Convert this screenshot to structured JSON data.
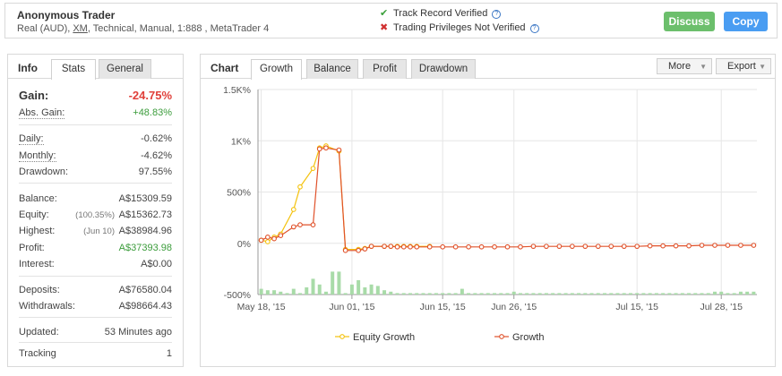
{
  "header": {
    "name": "Anonymous Trader",
    "details_pre": "Real (AUD), ",
    "broker": "XM",
    "details_post": ", Technical, Manual, 1:888 , MetaTrader 4",
    "track_record": "Track Record Verified",
    "trading_privileges": "Trading Privileges Not Verified",
    "discuss_label": "Discuss",
    "copy_label": "Copy"
  },
  "info": {
    "title": "Info",
    "tabs": [
      "Stats",
      "General"
    ],
    "gain_label": "Gain:",
    "gain_value": "-24.75%",
    "abs_gain_label": "Abs. Gain:",
    "abs_gain_value": "+48.83%",
    "daily_label": "Daily:",
    "daily_value": "-0.62%",
    "monthly_label": "Monthly:",
    "monthly_value": "-4.62%",
    "drawdown_label": "Drawdown:",
    "drawdown_value": "97.55%",
    "balance_label": "Balance:",
    "balance_value": "A$15309.59",
    "equity_label": "Equity:",
    "equity_sub": "(100.35%)",
    "equity_value": "A$15362.73",
    "highest_label": "Highest:",
    "highest_sub": "(Jun 10)",
    "highest_value": "A$38984.96",
    "profit_label": "Profit:",
    "profit_value": "A$37393.98",
    "interest_label": "Interest:",
    "interest_value": "A$0.00",
    "deposits_label": "Deposits:",
    "deposits_value": "A$76580.04",
    "withdrawals_label": "Withdrawals:",
    "withdrawals_value": "A$98664.43",
    "updated_label": "Updated:",
    "updated_value": "53 Minutes ago",
    "tracking_label": "Tracking",
    "tracking_value": "1"
  },
  "chart_panel": {
    "title": "Chart",
    "tabs": [
      "Growth",
      "Balance",
      "Profit",
      "Drawdown"
    ],
    "more_label": "More",
    "export_label": "Export"
  },
  "colors": {
    "equity": "#f4c20d",
    "growth": "#e0522b",
    "bars": "#a8dba8",
    "check": "#3aa03a",
    "cross": "#d03030"
  },
  "chart_data": {
    "type": "line",
    "y_ticks": [
      "1.5K%",
      "1K%",
      "500%",
      "0%",
      "-500%"
    ],
    "y_tick_values": [
      1500,
      1000,
      500,
      0,
      -500
    ],
    "ylim": [
      -500,
      1500
    ],
    "x_ticks": [
      {
        "label": "May 18, '15",
        "day": 0
      },
      {
        "label": "Jun 01, '15",
        "day": 14
      },
      {
        "label": "Jun 15, '15",
        "day": 28
      },
      {
        "label": "Jun 26, '15",
        "day": 39
      },
      {
        "label": "Jul 15, '15",
        "day": 58
      },
      {
        "label": "Jul 28, '15",
        "day": 71
      }
    ],
    "xlim": [
      -0.5,
      76.5
    ],
    "series": [
      {
        "name": "Equity Growth",
        "x": [
          0,
          1,
          2,
          3,
          5,
          6,
          8,
          9,
          10,
          12,
          13,
          15,
          16,
          17,
          19,
          20,
          21,
          22,
          23,
          24,
          26
        ],
        "y": [
          30,
          15,
          60,
          90,
          330,
          550,
          730,
          930,
          950,
          900,
          -60,
          -60,
          -50,
          -30,
          -30,
          -30,
          -30,
          -30,
          -30,
          -30,
          -30
        ]
      },
      {
        "name": "Growth",
        "x": [
          0,
          1,
          2,
          3,
          5,
          6,
          8,
          9,
          10,
          12,
          13,
          15,
          16,
          17,
          19,
          20,
          21,
          22,
          23,
          24,
          26,
          28,
          30,
          32,
          34,
          36,
          38,
          40,
          42,
          44,
          46,
          48,
          50,
          52,
          54,
          56,
          58,
          60,
          62,
          64,
          66,
          68,
          70,
          72,
          74,
          76
        ],
        "y": [
          30,
          60,
          45,
          75,
          160,
          180,
          180,
          920,
          930,
          910,
          -70,
          -70,
          -55,
          -30,
          -30,
          -30,
          -35,
          -35,
          -35,
          -35,
          -35,
          -35,
          -35,
          -35,
          -35,
          -35,
          -35,
          -35,
          -30,
          -30,
          -30,
          -30,
          -30,
          -30,
          -30,
          -30,
          -30,
          -25,
          -25,
          -25,
          -25,
          -20,
          -20,
          -20,
          -20,
          -20
        ]
      }
    ],
    "bars": {
      "x": [
        0,
        1,
        2,
        3,
        4,
        5,
        6,
        7,
        8,
        9,
        10,
        11,
        12,
        13,
        14,
        15,
        16,
        17,
        18,
        19,
        20,
        21,
        22,
        23,
        24,
        25,
        26,
        27,
        28,
        29,
        30,
        31,
        32,
        33,
        34,
        35,
        36,
        37,
        38,
        39,
        40,
        41,
        42,
        43,
        44,
        45,
        46,
        47,
        48,
        49,
        50,
        51,
        52,
        53,
        54,
        55,
        56,
        57,
        58,
        59,
        60,
        61,
        62,
        63,
        64,
        65,
        66,
        67,
        68,
        69,
        70,
        71,
        72,
        73,
        74,
        75,
        76
      ],
      "y": [
        4,
        3,
        3,
        2,
        1,
        4,
        1,
        5,
        11,
        7,
        2,
        16,
        16,
        1,
        7,
        10,
        5,
        7,
        6,
        3,
        2,
        1,
        1,
        1,
        1,
        1,
        1,
        1,
        1,
        1,
        1,
        4,
        1,
        1,
        1,
        1,
        1,
        1,
        1,
        2,
        1,
        1,
        1,
        1,
        1,
        1,
        1,
        1,
        1,
        1,
        1,
        1,
        1,
        1,
        1,
        1,
        1,
        1,
        1,
        1,
        1,
        1,
        1,
        1,
        1,
        1,
        1,
        1,
        1,
        1,
        2,
        2,
        1,
        1,
        2,
        2,
        2
      ]
    },
    "legend": "bottom"
  }
}
